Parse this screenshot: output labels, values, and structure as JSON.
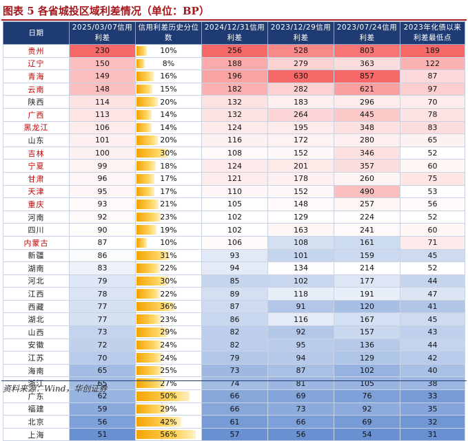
{
  "title": "图表 5   各省城投区域利差情况（单位：BP）",
  "source": "资料来源：Wind，华创证券",
  "headers": [
    "日期",
    "2025/03/07信用利差",
    "信用利差历史分位数",
    "2024/12/31信用利差",
    "2023/12/29信用利差",
    "2023/07/24信用利差",
    "2023年化债以来利差最低点"
  ],
  "colors": {
    "header_bg": "#1f3b73",
    "title": "#a6171c",
    "red_province": "#c00000"
  },
  "rows": [
    {
      "province": "贵州",
      "red": true,
      "spread": 230,
      "pct": "10%",
      "pct_value": 10,
      "y2024": 256,
      "y2023dec": 528,
      "y2023jul": 803,
      "low": 189
    },
    {
      "province": "辽宁",
      "red": true,
      "spread": 150,
      "pct": "8%",
      "pct_value": 8,
      "y2024": 188,
      "y2023dec": 279,
      "y2023jul": 363,
      "low": 122
    },
    {
      "province": "青海",
      "red": true,
      "spread": 149,
      "pct": "16%",
      "pct_value": 16,
      "y2024": 196,
      "y2023dec": 630,
      "y2023jul": 857,
      "low": 87
    },
    {
      "province": "云南",
      "red": true,
      "spread": 148,
      "pct": "15%",
      "pct_value": 15,
      "y2024": 182,
      "y2023dec": 282,
      "y2023jul": 621,
      "low": 97
    },
    {
      "province": "陕西",
      "red": false,
      "spread": 114,
      "pct": "20%",
      "pct_value": 20,
      "y2024": 132,
      "y2023dec": 183,
      "y2023jul": 296,
      "low": 70
    },
    {
      "province": "广西",
      "red": true,
      "spread": 113,
      "pct": "14%",
      "pct_value": 14,
      "y2024": 132,
      "y2023dec": 264,
      "y2023jul": 445,
      "low": 78
    },
    {
      "province": "黑龙江",
      "red": true,
      "spread": 106,
      "pct": "14%",
      "pct_value": 14,
      "y2024": 124,
      "y2023dec": 195,
      "y2023jul": 348,
      "low": 83
    },
    {
      "province": "山东",
      "red": false,
      "spread": 101,
      "pct": "20%",
      "pct_value": 20,
      "y2024": 116,
      "y2023dec": 172,
      "y2023jul": 280,
      "low": 65
    },
    {
      "province": "吉林",
      "red": true,
      "spread": 100,
      "pct": "30%",
      "pct_value": 30,
      "y2024": 108,
      "y2023dec": 152,
      "y2023jul": 346,
      "low": 52
    },
    {
      "province": "宁夏",
      "red": true,
      "spread": 99,
      "pct": "18%",
      "pct_value": 18,
      "y2024": 124,
      "y2023dec": 201,
      "y2023jul": 357,
      "low": 60
    },
    {
      "province": "甘肃",
      "red": true,
      "spread": 96,
      "pct": "17%",
      "pct_value": 17,
      "y2024": 121,
      "y2023dec": 178,
      "y2023jul": 260,
      "low": 75
    },
    {
      "province": "天津",
      "red": true,
      "spread": 95,
      "pct": "17%",
      "pct_value": 17,
      "y2024": 110,
      "y2023dec": 152,
      "y2023jul": 490,
      "low": 53
    },
    {
      "province": "重庆",
      "red": true,
      "spread": 93,
      "pct": "21%",
      "pct_value": 21,
      "y2024": 105,
      "y2023dec": 148,
      "y2023jul": 257,
      "low": 56
    },
    {
      "province": "河南",
      "red": false,
      "spread": 92,
      "pct": "23%",
      "pct_value": 23,
      "y2024": 102,
      "y2023dec": 129,
      "y2023jul": 224,
      "low": 52
    },
    {
      "province": "四川",
      "red": false,
      "spread": 90,
      "pct": "19%",
      "pct_value": 19,
      "y2024": 102,
      "y2023dec": 163,
      "y2023jul": 241,
      "low": 60
    },
    {
      "province": "内蒙古",
      "red": true,
      "spread": 87,
      "pct": "10%",
      "pct_value": 10,
      "y2024": 106,
      "y2023dec": 108,
      "y2023jul": 161,
      "low": 71
    },
    {
      "province": "新疆",
      "red": false,
      "spread": 86,
      "pct": "31%",
      "pct_value": 31,
      "y2024": 93,
      "y2023dec": 101,
      "y2023jul": 159,
      "low": 45
    },
    {
      "province": "湖南",
      "red": false,
      "spread": 83,
      "pct": "22%",
      "pct_value": 22,
      "y2024": 94,
      "y2023dec": 134,
      "y2023jul": 214,
      "low": 52
    },
    {
      "province": "河北",
      "red": false,
      "spread": 79,
      "pct": "30%",
      "pct_value": 30,
      "y2024": 85,
      "y2023dec": 102,
      "y2023jul": 177,
      "low": 44
    },
    {
      "province": "江西",
      "red": false,
      "spread": 78,
      "pct": "22%",
      "pct_value": 22,
      "y2024": 89,
      "y2023dec": 118,
      "y2023jul": 191,
      "low": 47
    },
    {
      "province": "西藏",
      "red": false,
      "spread": 77,
      "pct": "36%",
      "pct_value": 36,
      "y2024": 87,
      "y2023dec": 91,
      "y2023jul": 120,
      "low": 41
    },
    {
      "province": "湖北",
      "red": false,
      "spread": 77,
      "pct": "23%",
      "pct_value": 23,
      "y2024": 86,
      "y2023dec": 116,
      "y2023jul": 167,
      "low": 45
    },
    {
      "province": "山西",
      "red": false,
      "spread": 73,
      "pct": "29%",
      "pct_value": 29,
      "y2024": 82,
      "y2023dec": 92,
      "y2023jul": 157,
      "low": 43
    },
    {
      "province": "安徽",
      "red": false,
      "spread": 72,
      "pct": "24%",
      "pct_value": 24,
      "y2024": 82,
      "y2023dec": 95,
      "y2023jul": 136,
      "low": 44
    },
    {
      "province": "江苏",
      "red": false,
      "spread": 70,
      "pct": "24%",
      "pct_value": 24,
      "y2024": 79,
      "y2023dec": 94,
      "y2023jul": 129,
      "low": 42
    },
    {
      "province": "海南",
      "red": false,
      "spread": 65,
      "pct": "25%",
      "pct_value": 25,
      "y2024": 73,
      "y2023dec": 87,
      "y2023jul": 102,
      "low": 40
    },
    {
      "province": "浙江",
      "red": false,
      "spread": 65,
      "pct": "27%",
      "pct_value": 27,
      "y2024": 74,
      "y2023dec": 81,
      "y2023jul": 105,
      "low": 38
    },
    {
      "province": "广东",
      "red": false,
      "spread": 62,
      "pct": "50%",
      "pct_value": 50,
      "y2024": 66,
      "y2023dec": 69,
      "y2023jul": 76,
      "low": 33
    },
    {
      "province": "福建",
      "red": false,
      "spread": 59,
      "pct": "29%",
      "pct_value": 29,
      "y2024": 66,
      "y2023dec": 73,
      "y2023jul": 92,
      "low": 35
    },
    {
      "province": "北京",
      "red": false,
      "spread": 56,
      "pct": "42%",
      "pct_value": 42,
      "y2024": 61,
      "y2023dec": 66,
      "y2023jul": 69,
      "low": 32
    },
    {
      "province": "上海",
      "red": false,
      "spread": 51,
      "pct": "56%",
      "pct_value": 56,
      "y2024": 57,
      "y2023dec": 56,
      "y2023jul": 54,
      "low": 31
    }
  ]
}
